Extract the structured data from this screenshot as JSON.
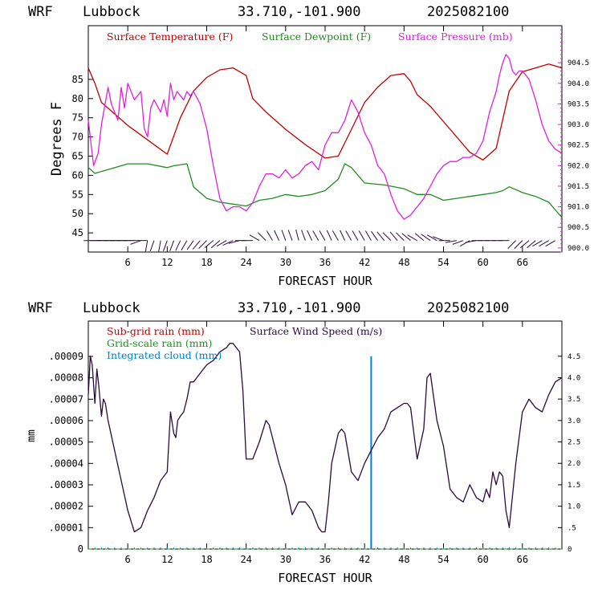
{
  "colors": {
    "temperature": "#c00000",
    "dewpoint": "#228b22",
    "pressure": "#e020e0",
    "subgrid_rain": "#c00000",
    "gridscale_rain": "#228b22",
    "cloud": "#0080d0",
    "wind": "#2a0a40",
    "right_axis": "#e020e0"
  },
  "chart_data": [
    {
      "type": "line",
      "header": {
        "model": "WRF",
        "station": "Lubbock",
        "coords": "33.710,-101.900",
        "init": "2025082100"
      },
      "xlabel": "FORECAST HOUR",
      "ylabel": "Degrees F",
      "xlim": [
        0,
        72
      ],
      "ylim": [
        40,
        99
      ],
      "y2lim": [
        899.9,
        905.4
      ],
      "xticks": [
        6,
        12,
        18,
        24,
        30,
        36,
        42,
        48,
        54,
        60,
        66
      ],
      "xtick_labels": [
        "6",
        "12",
        "18",
        "24",
        "30",
        "36",
        "42",
        "48",
        "54",
        "60",
        "66"
      ],
      "yticks": [
        45,
        50,
        55,
        60,
        65,
        70,
        75,
        80,
        85
      ],
      "ytick_labels": [
        "45",
        "50",
        "55",
        "60",
        "65",
        "70",
        "75",
        "80",
        "85"
      ],
      "y2ticks": [
        900.0,
        900.5,
        901.0,
        901.5,
        902.0,
        902.5,
        903.0,
        903.5,
        904.0,
        904.5
      ],
      "y2tick_labels": [
        "900.0",
        "900.5",
        "901.0",
        "901.5",
        "902.0",
        "902.5",
        "903.0",
        "903.5",
        "904.0",
        "904.5"
      ],
      "legend": [
        "Surface Temperature (F)",
        "Surface Dewpoint (F)",
        "Surface Pressure (mb)"
      ],
      "series": [
        {
          "name": "Surface Temperature (F)",
          "axis": "left",
          "x": [
            0,
            1,
            2,
            4,
            6,
            8,
            10,
            12,
            14,
            16,
            18,
            20,
            22,
            24,
            25,
            27,
            30,
            33,
            36,
            38,
            40,
            42,
            44,
            46,
            48,
            49,
            50,
            52,
            54,
            56,
            58,
            60,
            62,
            64,
            66,
            68,
            70,
            72
          ],
          "y": [
            88,
            84,
            79,
            76,
            73,
            70.5,
            68,
            65.5,
            75,
            82,
            85.5,
            87.5,
            88,
            86,
            80,
            76.5,
            72,
            68,
            64.5,
            65,
            72,
            79,
            83,
            86,
            86.5,
            84.5,
            81,
            78,
            74,
            70,
            66,
            64,
            67,
            82,
            87,
            88,
            89,
            88
          ]
        },
        {
          "name": "Surface Dewpoint (F)",
          "axis": "left",
          "x": [
            0,
            1,
            3,
            6,
            9,
            12,
            13,
            15,
            16,
            18,
            20,
            22,
            24,
            26,
            28,
            30,
            32,
            34,
            36,
            38,
            39,
            40,
            42,
            45,
            48,
            50,
            52,
            54,
            56,
            58,
            60,
            62,
            63,
            64,
            66,
            68,
            70,
            72
          ],
          "y": [
            62,
            60.5,
            61.5,
            63,
            63,
            62,
            62.5,
            63,
            57,
            54,
            53,
            52.5,
            52,
            53.5,
            54,
            55,
            54.5,
            55,
            56,
            59,
            63,
            62,
            58,
            57.5,
            56.5,
            55,
            55,
            53.5,
            54,
            54.5,
            55,
            55.5,
            56,
            57,
            55.5,
            54.5,
            53,
            49
          ]
        },
        {
          "name": "Surface Pressure (mb)",
          "axis": "right",
          "x": [
            0,
            0.8,
            1.5,
            2,
            3,
            3.5,
            4.5,
            5,
            5.5,
            6,
            7,
            8,
            8.5,
            9,
            9.5,
            10,
            11,
            11.5,
            12,
            12.5,
            13,
            13.5,
            14,
            14.5,
            15,
            15.5,
            16,
            17,
            18,
            19,
            20,
            21,
            22,
            23,
            24,
            25,
            26,
            27,
            28,
            29,
            30,
            31,
            32,
            33,
            34,
            35,
            36,
            37,
            38,
            39,
            40,
            41,
            42,
            43,
            44,
            45,
            46,
            47,
            48,
            49,
            50,
            51,
            52,
            53,
            54,
            55,
            56,
            57,
            58,
            59,
            60,
            61,
            62,
            62.5,
            63,
            63.5,
            64,
            64.5,
            65,
            65.5,
            66,
            67,
            68,
            69,
            70,
            71,
            72
          ],
          "y": [
            903.1,
            902.0,
            902.3,
            903.0,
            903.9,
            903.5,
            903.1,
            903.9,
            903.4,
            904.0,
            903.6,
            903.8,
            902.9,
            902.7,
            903.4,
            903.6,
            903.3,
            903.6,
            903.2,
            904.0,
            903.6,
            903.8,
            903.7,
            903.6,
            903.8,
            903.7,
            903.8,
            903.5,
            902.9,
            902.0,
            901.2,
            900.9,
            901.0,
            901.0,
            900.9,
            901.1,
            901.5,
            901.8,
            901.8,
            901.7,
            901.9,
            901.7,
            901.8,
            902.0,
            902.1,
            901.9,
            902.5,
            902.8,
            902.8,
            903.1,
            903.6,
            903.3,
            902.8,
            902.5,
            902.0,
            901.8,
            901.3,
            900.9,
            900.7,
            900.8,
            901.0,
            901.2,
            901.5,
            901.8,
            902.0,
            902.1,
            902.1,
            902.2,
            902.2,
            902.3,
            902.6,
            903.3,
            903.8,
            904.2,
            904.5,
            904.7,
            904.6,
            904.3,
            904.2,
            904.3,
            904.3,
            904.1,
            903.6,
            903.0,
            902.6,
            902.4,
            902.3
          ]
        }
      ],
      "wind_barbs": {
        "y_level": 43,
        "x": [
          1,
          2,
          3,
          4,
          5,
          6,
          7,
          8,
          9,
          10,
          11,
          12,
          13,
          14,
          15,
          16,
          17,
          18,
          19,
          20,
          21,
          22,
          23,
          24,
          25,
          26,
          27,
          28,
          29,
          30,
          31,
          32,
          33,
          34,
          35,
          36,
          37,
          38,
          39,
          40,
          41,
          42,
          43,
          44,
          45,
          46,
          47,
          48,
          49,
          50,
          51,
          52,
          53,
          54,
          55,
          56,
          57,
          58,
          59,
          60,
          61,
          62,
          63,
          64,
          65,
          66,
          67,
          68,
          69,
          70,
          71
        ],
        "dir": [
          270,
          270,
          270,
          270,
          270,
          270,
          270,
          250,
          190,
          200,
          190,
          200,
          200,
          205,
          210,
          215,
          220,
          225,
          230,
          230,
          240,
          245,
          255,
          270,
          270,
          300,
          315,
          330,
          335,
          340,
          340,
          345,
          340,
          335,
          330,
          330,
          335,
          330,
          335,
          330,
          330,
          330,
          330,
          325,
          320,
          315,
          320,
          315,
          310,
          300,
          310,
          305,
          300,
          290,
          270,
          260,
          250,
          240,
          260,
          270,
          270,
          270,
          270,
          270,
          225,
          225,
          230,
          230,
          240,
          240,
          240
        ]
      }
    },
    {
      "type": "line",
      "header": {
        "model": "WRF",
        "station": "Lubbock",
        "coords": "33.710,-101.900",
        "init": "2025082100"
      },
      "xlabel": "FORECAST HOUR",
      "ylabel": "mm",
      "xlim": [
        0,
        72
      ],
      "ylim": [
        0,
        0.0001065
      ],
      "y2lim": [
        0,
        5.32
      ],
      "xticks": [
        6,
        12,
        18,
        24,
        30,
        36,
        42,
        48,
        54,
        60,
        66
      ],
      "xtick_labels": [
        "6",
        "12",
        "18",
        "24",
        "30",
        "36",
        "42",
        "48",
        "54",
        "60",
        "66"
      ],
      "yticks": [
        0,
        1e-05,
        2e-05,
        3e-05,
        4e-05,
        5e-05,
        6e-05,
        7e-05,
        8e-05,
        9e-05
      ],
      "ytick_labels": [
        "0",
        ".00001",
        ".00002",
        ".00003",
        ".00004",
        ".00005",
        ".00006",
        ".00007",
        ".00008",
        ".00009"
      ],
      "y2ticks": [
        0,
        0.5,
        1.0,
        1.5,
        2.0,
        2.5,
        3.0,
        3.5,
        4.0,
        4.5
      ],
      "y2tick_labels": [
        "0",
        ".5",
        "1.0",
        "1.5",
        "2.0",
        "2.5",
        "3.0",
        "3.5",
        "4.0",
        "4.5"
      ],
      "legend": [
        "Sub-grid rain (mm)",
        "Grid-scale rain (mm)",
        "Integrated cloud (mm)",
        "Surface Wind Speed (m/s)"
      ],
      "series": [
        {
          "name": "Sub-grid rain (mm)",
          "axis": "left",
          "x": [
            0,
            72
          ],
          "y": [
            0,
            0
          ]
        },
        {
          "name": "Grid-scale rain (mm)",
          "axis": "left",
          "x": [
            0,
            72
          ],
          "y": [
            0,
            0
          ]
        },
        {
          "name": "Integrated cloud (mm)",
          "axis": "left",
          "x": [
            43,
            43
          ],
          "y": [
            0,
            9e-05
          ]
        },
        {
          "name": "Surface Wind Speed (m/s)",
          "axis": "right",
          "x": [
            0,
            0.3,
            0.6,
            1,
            1.3,
            1.6,
            2,
            2.3,
            2.6,
            3,
            4,
            5,
            6,
            7,
            8,
            8.5,
            9,
            10,
            11,
            12,
            12.5,
            13,
            13.3,
            13.6,
            14,
            14.5,
            15,
            15.5,
            16,
            17,
            18,
            19,
            20,
            21,
            21.5,
            22,
            22.5,
            23,
            23.5,
            24,
            25,
            26,
            27,
            27.5,
            28,
            29,
            30,
            31,
            32,
            33,
            34,
            35,
            35.5,
            36,
            36.5,
            37,
            38,
            38.5,
            39,
            40,
            41,
            42,
            43,
            44,
            45,
            46,
            47,
            48,
            48.5,
            49,
            50,
            51,
            51.5,
            52,
            53,
            54,
            55,
            56,
            57,
            58,
            59,
            60,
            60.5,
            61,
            61.5,
            62,
            62.5,
            63,
            63.5,
            64,
            65,
            66,
            67,
            68,
            69,
            70,
            71,
            72
          ],
          "y": [
            3.6,
            4.5,
            4.3,
            3.4,
            4.2,
            3.8,
            3.1,
            3.5,
            3.4,
            3.0,
            2.3,
            1.6,
            0.9,
            0.4,
            0.5,
            0.7,
            0.9,
            1.2,
            1.6,
            1.8,
            3.2,
            2.7,
            2.6,
            3.0,
            3.1,
            3.2,
            3.5,
            3.9,
            3.9,
            4.1,
            4.3,
            4.4,
            4.6,
            4.7,
            4.8,
            4.8,
            4.7,
            4.6,
            3.7,
            2.1,
            2.1,
            2.5,
            3.0,
            2.9,
            2.6,
            2.0,
            1.5,
            0.8,
            1.1,
            1.1,
            0.9,
            0.5,
            0.4,
            0.4,
            1.1,
            2.0,
            2.7,
            2.8,
            2.7,
            1.8,
            1.6,
            2.0,
            2.3,
            2.6,
            2.8,
            3.2,
            3.3,
            3.4,
            3.4,
            3.3,
            2.1,
            2.8,
            4.0,
            4.1,
            3.0,
            2.4,
            1.4,
            1.2,
            1.1,
            1.5,
            1.2,
            1.1,
            1.4,
            1.2,
            1.8,
            1.5,
            1.8,
            1.7,
            0.9,
            0.5,
            2.0,
            3.2,
            3.5,
            3.3,
            3.2,
            3.6,
            3.9,
            4.0
          ]
        }
      ]
    }
  ]
}
